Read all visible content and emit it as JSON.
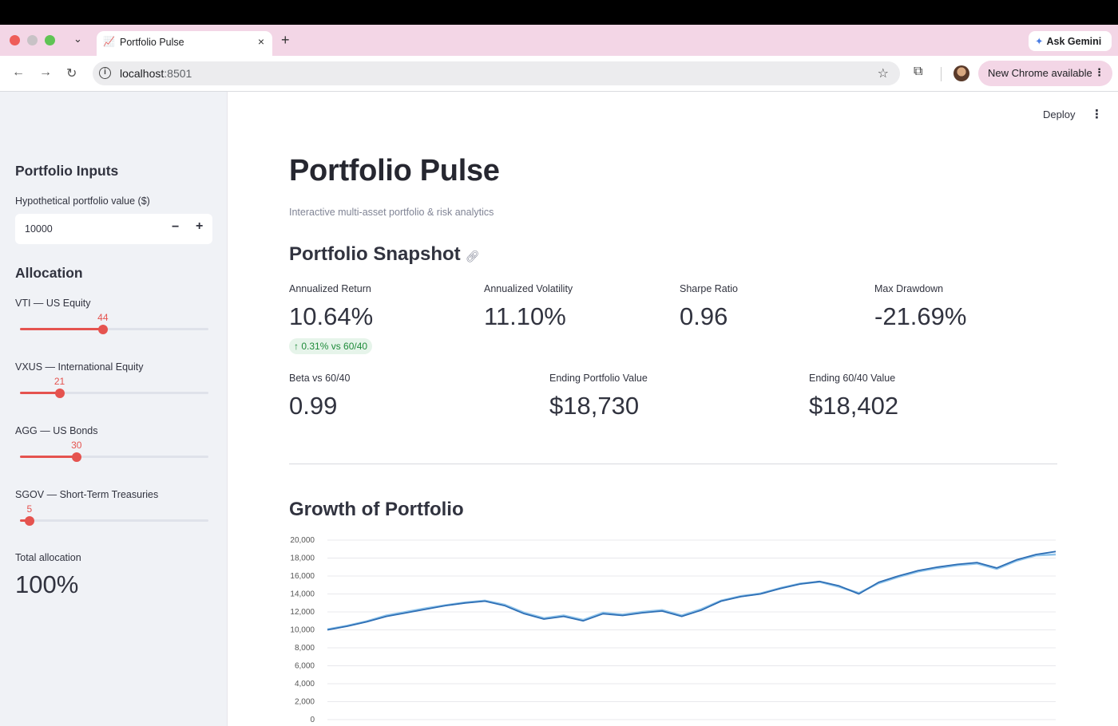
{
  "browser": {
    "tab_title": "Portfolio Pulse",
    "new_tab": "+",
    "ask_gemini": "Ask Gemini",
    "url_host": "localhost",
    "url_port": ":8501",
    "new_chrome": "New Chrome available"
  },
  "header": {
    "deploy": "Deploy"
  },
  "sidebar": {
    "inputs_heading": "Portfolio Inputs",
    "value_label": "Hypothetical portfolio value ($)",
    "value": "10000",
    "allocation_heading": "Allocation",
    "sliders": [
      {
        "label": "VTI — US Equity",
        "value": "44",
        "fraction": 0.44
      },
      {
        "label": "VXUS — International Equity",
        "value": "21",
        "fraction": 0.21
      },
      {
        "label": "AGG — US Bonds",
        "value": "30",
        "fraction": 0.3
      },
      {
        "label": "SGOV — Short-Term Treasuries",
        "value": "5",
        "fraction": 0.05
      }
    ],
    "total_label": "Total allocation",
    "total_value": "100%"
  },
  "main": {
    "title": "Portfolio Pulse",
    "caption": "Interactive multi-asset portfolio & risk analytics",
    "snapshot_heading": "Portfolio Snapshot",
    "metrics_row1": [
      {
        "label": "Annualized Return",
        "value": "10.64%"
      },
      {
        "label": "Annualized Volatility",
        "value": "11.10%"
      },
      {
        "label": "Sharpe Ratio",
        "value": "0.96"
      },
      {
        "label": "Max Drawdown",
        "value": "-21.69%"
      }
    ],
    "delta": "0.31% vs 60/40",
    "metrics_row2": [
      {
        "label": "Beta vs 60/40",
        "value": "0.99"
      },
      {
        "label": "Ending Portfolio Value",
        "value": "$18,730"
      },
      {
        "label": "Ending 60/40 Value",
        "value": "$18,402"
      }
    ],
    "growth_heading": "Growth of Portfolio"
  },
  "chart_data": {
    "type": "line",
    "title": "",
    "xlabel": "",
    "ylabel": "",
    "ylim": [
      0,
      20000
    ],
    "y_ticks": [
      "0",
      "2,000",
      "4,000",
      "6,000",
      "8,000",
      "10,000",
      "12,000",
      "14,000",
      "16,000",
      "18,000",
      "20,000"
    ],
    "grid": true,
    "series": [
      {
        "color": "#2e6fb5",
        "values": [
          10000,
          10400,
          10900,
          11500,
          11900,
          12300,
          12700,
          13000,
          13200,
          12700,
          11800,
          11200,
          11500,
          11000,
          11800,
          11600,
          11900,
          12100,
          11500,
          12200,
          13200,
          13700,
          14000,
          14600,
          15100,
          15400,
          14900,
          14000,
          15300,
          16000,
          16600,
          17000,
          17300,
          17500,
          16900,
          17800,
          18400,
          18730
        ]
      },
      {
        "color": "#8fc3ea",
        "values": [
          10050,
          10450,
          10950,
          11600,
          12000,
          12400,
          12750,
          13050,
          13250,
          12800,
          11900,
          11300,
          11600,
          11100,
          11900,
          11700,
          12000,
          12200,
          11600,
          12300,
          13250,
          13750,
          14050,
          14650,
          15150,
          15350,
          14800,
          14100,
          15200,
          15900,
          16500,
          16900,
          17200,
          17400,
          16800,
          17700,
          18300,
          18402
        ]
      }
    ]
  }
}
